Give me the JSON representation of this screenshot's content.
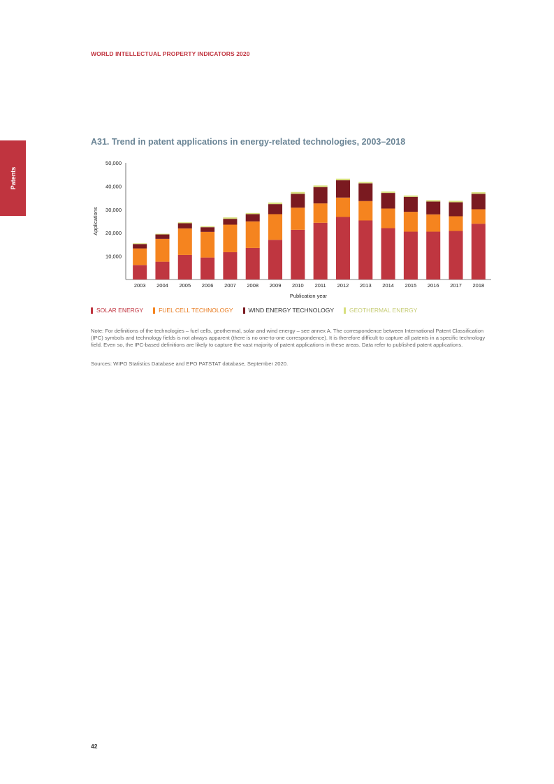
{
  "header": {
    "title": "WORLD INTELLECTUAL PROPERTY INDICATORS 2020"
  },
  "side_tab": {
    "label": "Patents"
  },
  "figure": {
    "title": "A31. Trend in patent applications in energy-related technologies, 2003–2018"
  },
  "chart_data": {
    "type": "bar",
    "stacked": true,
    "title": "A31. Trend in patent applications in energy-related technologies, 2003–2018",
    "xlabel": "Publication year",
    "ylabel": "Applications",
    "ylim": [
      0,
      50000
    ],
    "yticks": [
      10000,
      20000,
      30000,
      40000,
      50000
    ],
    "ytick_labels": [
      "10,000",
      "20,000",
      "30,000",
      "40,000",
      "50,000"
    ],
    "grid": false,
    "categories": [
      "2003",
      "2004",
      "2005",
      "2006",
      "2007",
      "2008",
      "2009",
      "2010",
      "2011",
      "2012",
      "2013",
      "2014",
      "2015",
      "2016",
      "2017",
      "2018"
    ],
    "series": [
      {
        "name": "SOLAR ENERGY",
        "color": "#bf3640",
        "values": [
          6200,
          7600,
          10500,
          9400,
          11700,
          13500,
          17000,
          21300,
          24300,
          26800,
          25300,
          22000,
          20500,
          20500,
          20800,
          23900
        ]
      },
      {
        "name": "FUEL CELL TECHNOLOGY",
        "color": "#f5841f",
        "values": [
          7100,
          9800,
          11400,
          11000,
          11800,
          11400,
          11000,
          9500,
          8300,
          8300,
          8300,
          8400,
          8500,
          7400,
          6300,
          6200
        ]
      },
      {
        "name": "WIND ENERGY TECHNOLOGY",
        "color": "#7a1a20",
        "values": [
          1900,
          1900,
          2200,
          2000,
          2500,
          3100,
          4300,
          5900,
          7000,
          7400,
          7600,
          6700,
          6400,
          5500,
          6000,
          6600
        ]
      },
      {
        "name": "GEOTHERMAL ENERGY",
        "color": "#d8df7e",
        "values": [
          300,
          300,
          400,
          400,
          600,
          500,
          700,
          800,
          700,
          700,
          600,
          600,
          600,
          600,
          600,
          700
        ]
      }
    ]
  },
  "legend": {
    "items": [
      {
        "label": "SOLAR ENERGY",
        "color": "#bf3640",
        "text_color": "#c0343f"
      },
      {
        "label": "FUEL CELL TECHNOLOGY",
        "color": "#f5841f",
        "text_color": "#e8781a"
      },
      {
        "label": "WIND ENERGY TECHNOLOGY",
        "color": "#7a1a20",
        "text_color": "#333333"
      },
      {
        "label": "GEOTHERMAL ENERGY",
        "color": "#d8df7e",
        "text_color": "#c6cc74"
      }
    ]
  },
  "note": "Note: For definitions of the technologies – fuel cells, geothermal, solar and wind energy – see annex A. The correspondence between International Patent Classification (IPC) symbols and technology fields is not always apparent (there is no one-to-one correspondence). It is therefore difficult to capture all patents in a specific technology field. Even so, the IPC-based definitions are likely to capture the vast majority of patent applications in these areas. Data refer to published patent applications.",
  "sources": "Sources: WIPO Statistics Database and EPO PATSTAT database, September 2020.",
  "page_number": "42"
}
